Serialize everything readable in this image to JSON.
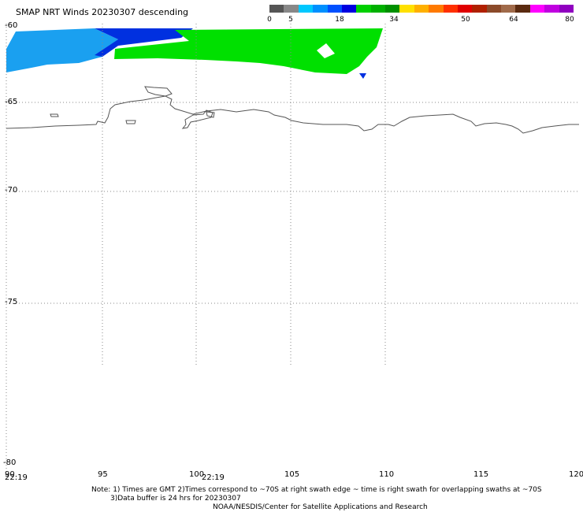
{
  "title": "SMAP NRT Winds  20230307 descending",
  "colorbar": {
    "labels": [
      "0",
      "5",
      "18",
      "34",
      "50",
      "64",
      "80"
    ],
    "colors": [
      "#555555",
      "#888888",
      "#00c8ff",
      "#0090ff",
      "#0050ff",
      "#0000e0",
      "#00d000",
      "#00b000",
      "#009000",
      "#ffe000",
      "#ffb000",
      "#ff7a00",
      "#ff3000",
      "#e00000",
      "#b02000",
      "#8b4a2a",
      "#a06a4a",
      "#5a2a10",
      "#ff00ff",
      "#c000e0",
      "#9000c0"
    ]
  },
  "axes": {
    "lat_labels": [
      "-60",
      "-65",
      "-70",
      "-75",
      "-80"
    ],
    "lon_labels": [
      "90",
      "95",
      "100",
      "105",
      "110",
      "115",
      "120"
    ]
  },
  "times": [
    "22:19",
    "22:19"
  ],
  "notes": {
    "line1": "Note: 1) Times are GMT 2)Times correspond to ~70S at right swath edge ~ time is right swath for overlapping swaths at ~70S",
    "line2": "3)Data buffer is 24 hrs for 20230307",
    "line3": "NOAA/NESDIS/Center for Satellite Applications and Research"
  },
  "legend_colors": {
    "light_blue": "#1aa0f0",
    "blue": "#0030e0",
    "green": "#00e000",
    "coast": "#555555"
  }
}
